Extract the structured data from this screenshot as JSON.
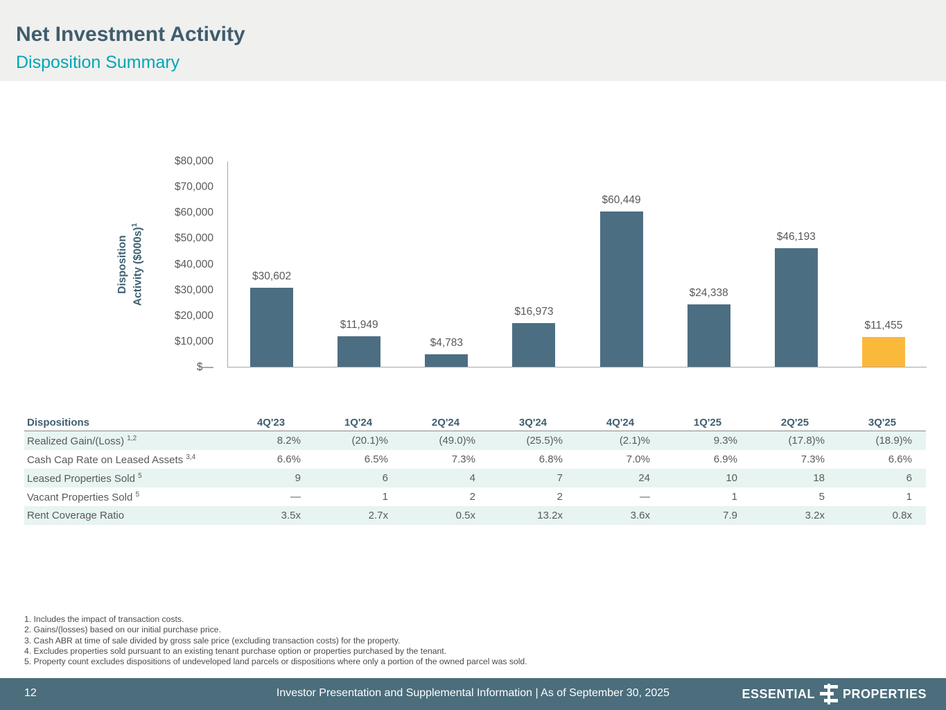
{
  "header": {
    "title": "Net Investment Activity",
    "subtitle": "Disposition Summary"
  },
  "chart_data": {
    "type": "bar",
    "title": "",
    "ylabel_line1": "Disposition",
    "ylabel_line2": "Activity ($000s)",
    "ylabel_sup": "1",
    "categories": [
      "4Q'23",
      "1Q'24",
      "2Q'24",
      "3Q'24",
      "4Q'24",
      "1Q'25",
      "2Q'25",
      "3Q'25"
    ],
    "values": [
      30602,
      11949,
      4783,
      16973,
      60449,
      24338,
      46193,
      11455
    ],
    "value_labels": [
      "$30,602",
      "$11,949",
      "$4,783",
      "$16,973",
      "$60,449",
      "$24,338",
      "$46,193",
      "$11,455"
    ],
    "ylim": [
      0,
      80000
    ],
    "ytick_labels": [
      "$80,000",
      "$70,000",
      "$60,000",
      "$50,000",
      "$40,000",
      "$30,000",
      "$20,000",
      "$10,000",
      "$—"
    ],
    "bar_color": "#4c6e82",
    "highlight_color": "#fbb93c",
    "highlight_index": 7,
    "grid": false,
    "legend": false
  },
  "table": {
    "header": [
      "Dispositions",
      "4Q'23",
      "1Q'24",
      "2Q'24",
      "3Q'24",
      "4Q'24",
      "1Q'25",
      "2Q'25",
      "3Q'25"
    ],
    "rows": [
      {
        "label": "Realized Gain/(Loss)",
        "superscript": "1,2",
        "values": [
          "8.2%",
          "(20.1)%",
          "(49.0)%",
          "(25.5)%",
          "(2.1)%",
          "9.3%",
          "(17.8)%",
          "(18.9)%"
        ]
      },
      {
        "label": "Cash Cap Rate on Leased Assets",
        "superscript": "3,4",
        "values": [
          "6.6%",
          "6.5%",
          "7.3%",
          "6.8%",
          "7.0%",
          "6.9%",
          "7.3%",
          "6.6%"
        ]
      },
      {
        "label": "Leased Properties Sold",
        "superscript": "5",
        "values": [
          "9",
          "6",
          "4",
          "7",
          "24",
          "10",
          "18",
          "6"
        ]
      },
      {
        "label": "Vacant Properties Sold",
        "superscript": "5",
        "values": [
          "—",
          "1",
          "2",
          "2",
          "—",
          "1",
          "5",
          "1"
        ]
      },
      {
        "label": "Rent Coverage Ratio",
        "superscript": "",
        "values": [
          "3.5x",
          "2.7x",
          "0.5x",
          "13.2x",
          "3.6x",
          "7.9",
          "3.2x",
          "0.8x"
        ]
      }
    ]
  },
  "footnotes": [
    "1. Includes the impact of transaction costs.",
    "2. Gains/(losses) based on our initial purchase price.",
    "3. Cash ABR at time of sale divided by gross sale price (excluding transaction costs) for the property.",
    "4. Excludes properties sold pursuant to an existing tenant purchase option or properties purchased by the tenant.",
    "5. Property count excludes dispositions of undeveloped land parcels or dispositions where only a portion of the owned parcel was sold."
  ],
  "footer": {
    "page_number": "12",
    "text": "Investor Presentation and Supplemental Information |  As of September 30, 2025",
    "logo_left": "ESSENTIAL",
    "logo_right": "PROPERTIES"
  }
}
